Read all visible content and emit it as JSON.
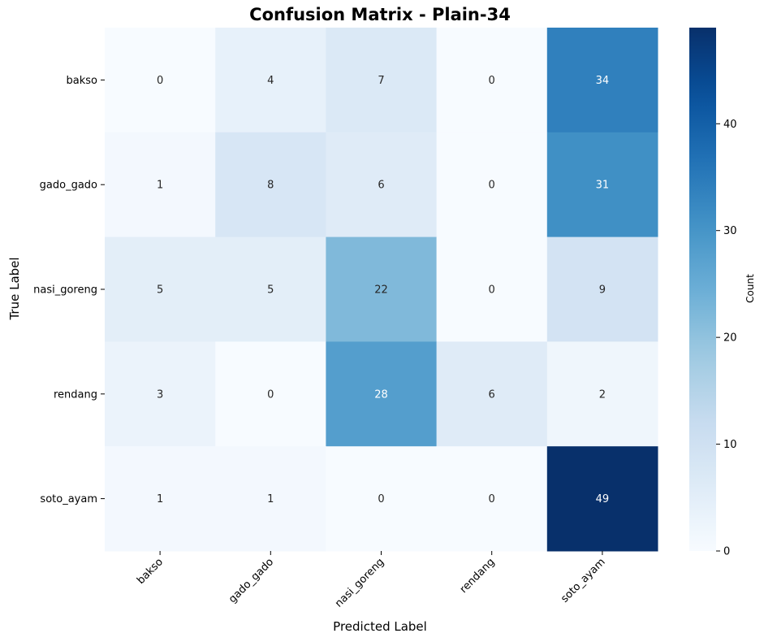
{
  "chart_data": {
    "type": "heatmap",
    "title": "Confusion Matrix - Plain-34",
    "xlabel": "Predicted Label",
    "ylabel": "True Label",
    "x_categories": [
      "bakso",
      "gado_gado",
      "nasi_goreng",
      "rendang",
      "soto_ayam"
    ],
    "y_categories": [
      "bakso",
      "gado_gado",
      "nasi_goreng",
      "rendang",
      "soto_ayam"
    ],
    "values": [
      [
        0,
        4,
        7,
        0,
        34
      ],
      [
        1,
        8,
        6,
        0,
        31
      ],
      [
        5,
        5,
        22,
        0,
        9
      ],
      [
        3,
        0,
        28,
        6,
        2
      ],
      [
        1,
        1,
        0,
        0,
        49
      ]
    ],
    "colorbar": {
      "label": "Count",
      "range": [
        0,
        49
      ],
      "ticks": [
        "0",
        "10",
        "20",
        "30",
        "40"
      ],
      "colormap": "Blues"
    }
  }
}
